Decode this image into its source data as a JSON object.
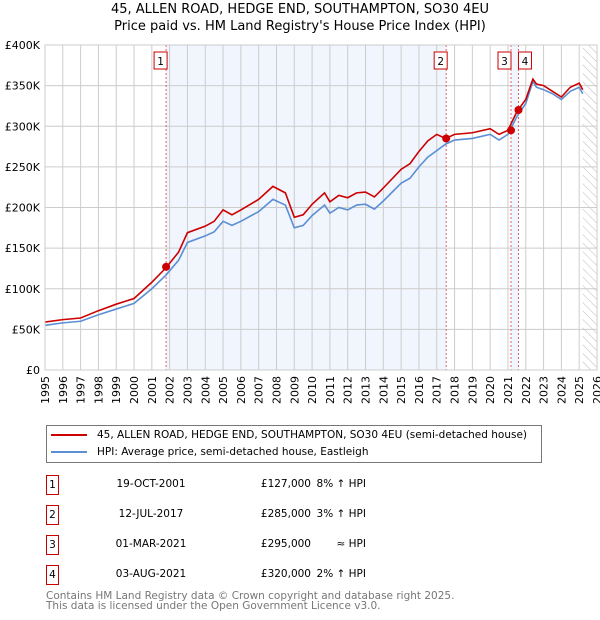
{
  "chart_data": {
    "type": "line",
    "title": "45, ALLEN ROAD, HEDGE END, SOUTHAMPTON, SO30 4EU",
    "subtitle": "Price paid vs. HM Land Registry's House Price Index (HPI)",
    "xlim": [
      1995,
      2026
    ],
    "ylim": [
      0,
      400000
    ],
    "y_ticks": [
      0,
      50000,
      100000,
      150000,
      200000,
      250000,
      300000,
      350000,
      400000
    ],
    "y_tick_labels": [
      "£0",
      "£50K",
      "£100K",
      "£150K",
      "£200K",
      "£250K",
      "£300K",
      "£350K",
      "£400K"
    ],
    "x_tick_labels": [
      "1995",
      "1996",
      "1997",
      "1998",
      "1999",
      "2000",
      "2001",
      "2002",
      "2003",
      "2004",
      "2005",
      "2006",
      "2007",
      "2008",
      "2009",
      "2010",
      "2011",
      "2012",
      "2013",
      "2014",
      "2015",
      "2016",
      "2017",
      "2018",
      "2019",
      "2020",
      "2021",
      "2022",
      "2023",
      "2024",
      "2025",
      "2026"
    ],
    "grid": true,
    "x": [
      1995,
      1996,
      1997,
      1998,
      1999,
      2000,
      2001,
      2001.8,
      2002.5,
      2003,
      2004,
      2004.5,
      2005,
      2005.5,
      2006,
      2007,
      2007.8,
      2008.5,
      2009,
      2009.5,
      2010,
      2010.7,
      2011,
      2011.5,
      2012,
      2012.5,
      2013,
      2013.5,
      2014,
      2015,
      2015.5,
      2016,
      2016.5,
      2017,
      2017.5,
      2018,
      2019,
      2020,
      2020.5,
      2021,
      2021.5,
      2022,
      2022.4,
      2022.6,
      2023,
      2023.5,
      2024,
      2024.5,
      2025,
      2025.2
    ],
    "series": [
      {
        "name": "45, ALLEN ROAD, HEDGE END, SOUTHAMPTON, SO30 4EU (semi-detached house)",
        "color": "#cc0000",
        "values_k": [
          59,
          62,
          64,
          73,
          81,
          88,
          108,
          126,
          145,
          169,
          177,
          183,
          197,
          191,
          197,
          210,
          226,
          218,
          188,
          191,
          204,
          218,
          207,
          215,
          212,
          218,
          219,
          213,
          224,
          247,
          254,
          269,
          282,
          290,
          285,
          290,
          292,
          297,
          290,
          295,
          318,
          333,
          358,
          352,
          350,
          343,
          336,
          348,
          353,
          345
        ]
      },
      {
        "name": "HPI: Average price, semi-detached house, Eastleigh",
        "color": "#5b8fd4",
        "values_k": [
          55,
          58,
          60,
          68,
          75,
          82,
          100,
          117,
          135,
          157,
          165,
          170,
          183,
          178,
          183,
          195,
          210,
          203,
          175,
          178,
          190,
          203,
          193,
          200,
          197,
          203,
          204,
          198,
          208,
          230,
          236,
          250,
          262,
          270,
          278,
          283,
          285,
          290,
          283,
          290,
          312,
          328,
          355,
          348,
          345,
          340,
          333,
          343,
          348,
          340
        ]
      }
    ],
    "shaded_ranges": [
      [
        2001.8,
        2017.53
      ],
      [
        2021.17,
        2021.59
      ]
    ],
    "forecast_hatch_from": 2025.2,
    "sales": [
      {
        "label": "1",
        "x": 2001.8,
        "value": 127000,
        "date": "19-OCT-2001",
        "price": "£127,000",
        "hpi": "8% ↑ HPI"
      },
      {
        "label": "2",
        "x": 2017.53,
        "value": 285000,
        "date": "12-JUL-2017",
        "price": "£285,000",
        "hpi": "3% ↑ HPI"
      },
      {
        "label": "3",
        "x": 2021.17,
        "value": 295000,
        "date": "01-MAR-2021",
        "price": "£295,000",
        "hpi": "≈ HPI"
      },
      {
        "label": "4",
        "x": 2021.59,
        "value": 320000,
        "date": "03-AUG-2021",
        "price": "£320,000",
        "hpi": "2% ↑ HPI"
      }
    ]
  },
  "footer": {
    "line1": "Contains HM Land Registry data © Crown copyright and database right 2025.",
    "line2": "This data is licensed under the Open Government Licence v3.0."
  }
}
